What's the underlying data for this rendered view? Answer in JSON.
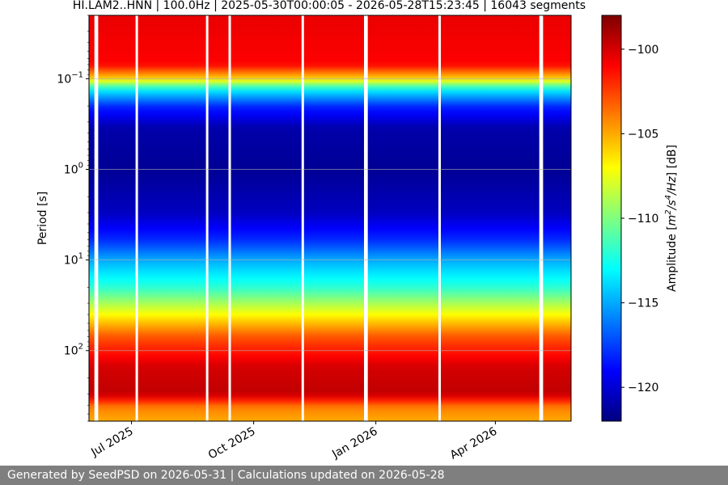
{
  "chart_data": {
    "type": "heatmap",
    "title": "HI.LAM2..HNN | 100.0Hz | 2025-05-30T00:00:05 - 2026-05-28T15:23:45 | 16043 segments",
    "ylabel": "Period [s]",
    "xlabel": "",
    "y_scale": "log",
    "y_inverted": true,
    "ylim": [
      0.02,
      600
    ],
    "yticks": [
      {
        "value": 0.1,
        "base": "10",
        "exp": "−1"
      },
      {
        "value": 1,
        "base": "10",
        "exp": "0"
      },
      {
        "value": 10,
        "base": "10",
        "exp": "1"
      },
      {
        "value": 100,
        "base": "10",
        "exp": "2"
      }
    ],
    "xlim": [
      "2025-05-30",
      "2026-05-28"
    ],
    "xticks": [
      {
        "date": "2025-07-01",
        "label": "Jul 2025"
      },
      {
        "date": "2025-10-01",
        "label": "Oct 2025"
      },
      {
        "date": "2026-01-01",
        "label": "Jan 2026"
      },
      {
        "date": "2026-04-01",
        "label": "Apr 2026"
      }
    ],
    "grid": true,
    "colorbar": {
      "label_parts": [
        "Amplitude [",
        "m",
        "2",
        "/",
        "s",
        "4",
        "/",
        "Hz",
        "] [dB]"
      ],
      "range": [
        -122,
        -98
      ],
      "ticks": [
        -100,
        -105,
        -110,
        -115,
        -120
      ],
      "tick_labels": [
        "−100",
        "−105",
        "−110",
        "−115",
        "−120"
      ],
      "colormap": "jet"
    },
    "amplitude_profile": [
      {
        "period": 0.02,
        "db": -100.5
      },
      {
        "period": 0.07,
        "db": -101
      },
      {
        "period": 0.1,
        "db": -106
      },
      {
        "period": 0.13,
        "db": -113
      },
      {
        "period": 0.2,
        "db": -118
      },
      {
        "period": 0.35,
        "db": -121
      },
      {
        "period": 1,
        "db": -121.5
      },
      {
        "period": 3,
        "db": -120.5
      },
      {
        "period": 6,
        "db": -118
      },
      {
        "period": 10,
        "db": -115
      },
      {
        "period": 20,
        "db": -112
      },
      {
        "period": 40,
        "db": -107
      },
      {
        "period": 70,
        "db": -103
      },
      {
        "period": 150,
        "db": -100
      },
      {
        "period": 300,
        "db": -99.5
      },
      {
        "period": 420,
        "db": -104
      },
      {
        "period": 600,
        "db": -105
      }
    ],
    "data_gaps": [
      "2025-06-04",
      "2025-06-05",
      "2025-07-05",
      "2025-08-27",
      "2025-09-13",
      "2025-11-07",
      "2025-12-24",
      "2025-12-25",
      "2026-02-18",
      "2026-05-05",
      "2026-05-06"
    ]
  },
  "footer": {
    "text": "Generated by SeedPSD on 2026-05-31 | Calculations updated on 2026-05-28"
  },
  "colors": {
    "footer_background": "#7f7f7f",
    "footer_text": "#ffffff",
    "gap": "#ffffff"
  }
}
